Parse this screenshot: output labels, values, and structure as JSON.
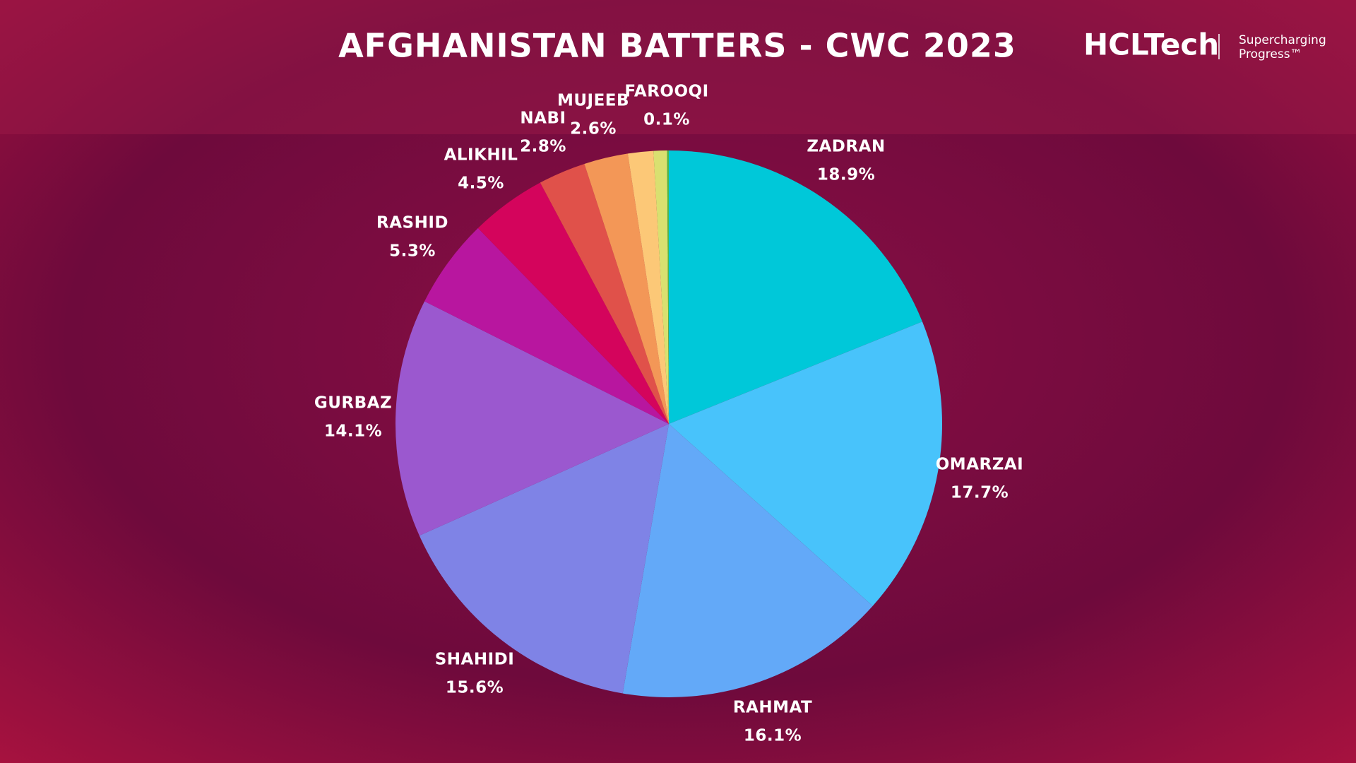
{
  "chart_data": {
    "type": "pie",
    "title": "AFGHANISTAN BATTERS - CWC 2023",
    "categories": [
      "ZADRAN",
      "OMARZAI",
      "RAHMAT",
      "SHAHIDI",
      "GURBAZ",
      "RASHID",
      "ALIKHIL",
      "NABI",
      "MUJEEB",
      null,
      null,
      "FAROOQI"
    ],
    "values": [
      18.9,
      17.7,
      16.1,
      15.6,
      14.1,
      5.3,
      4.5,
      2.8,
      2.6,
      1.5,
      0.8,
      0.1
    ],
    "value_labels": [
      "18.9%",
      "17.7%",
      "16.1%",
      "15.6%",
      "14.1%",
      "5.3%",
      "4.5%",
      "2.8%",
      "2.6%",
      null,
      null,
      "0.1%"
    ],
    "colors": [
      "#00c8d9",
      "#48c3fb",
      "#63a9f8",
      "#7f83e6",
      "#9b58cf",
      "#b8169f",
      "#d4045c",
      "#e0514a",
      "#f39757",
      "#fcc877",
      "#d9e070",
      "#4eb84a"
    ]
  },
  "logo": {
    "name": "HCLTech",
    "tagline": [
      "Supercharging",
      "Progress™"
    ]
  }
}
